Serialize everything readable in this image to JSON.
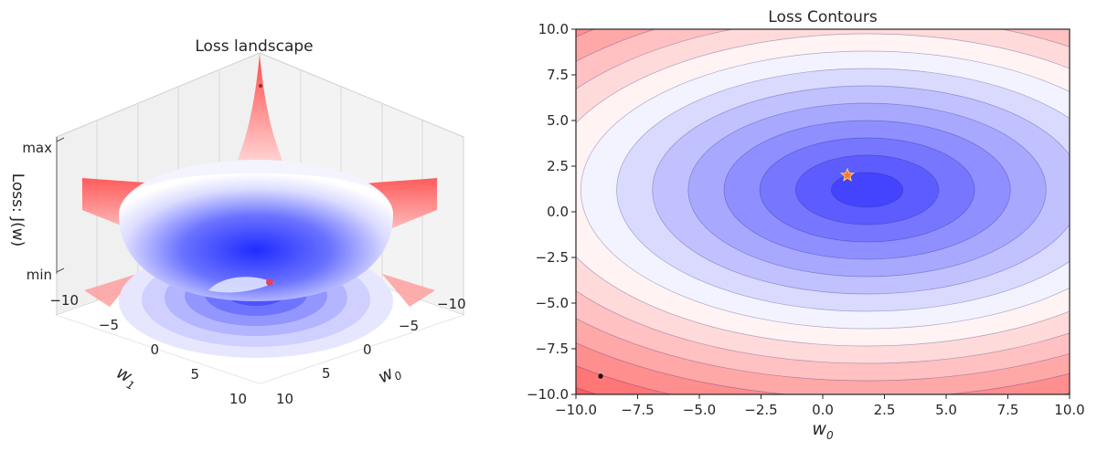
{
  "chart_data": [
    {
      "type": "surface",
      "title": "Loss landscape",
      "xlabel": "w",
      "xlabel_sub": "0",
      "ylabel": "w",
      "ylabel_sub": "1",
      "zlabel": "Loss: J(w)",
      "x_ticks": [
        "−10",
        "−5",
        "0",
        "5",
        "10"
      ],
      "y_ticks": [
        "−10",
        "−5",
        "0",
        "5",
        "10"
      ],
      "z_ticks": [
        "max",
        "min"
      ],
      "xlim": [
        -10,
        10
      ],
      "ylim": [
        -10,
        10
      ],
      "colormap": [
        "#4444ff",
        "#ffffff",
        "#ff4444"
      ],
      "minimum": {
        "w0": 1,
        "w1": 2
      }
    },
    {
      "type": "contour",
      "title": "Loss Contours",
      "xlabel": "w",
      "xlabel_sub": "0",
      "xlim": [
        -10,
        10
      ],
      "ylim": [
        -10,
        10
      ],
      "x_ticks": [
        "−10.0",
        "−7.5",
        "−5.0",
        "−2.5",
        "0.0",
        "2.5",
        "5.0",
        "7.5",
        "10.0"
      ],
      "y_ticks": [
        "10.0",
        "7.5",
        "5.0",
        "2.5",
        "0.0",
        "−2.5",
        "−5.0",
        "−7.5",
        "−10.0"
      ],
      "x_tick_values": [
        -10,
        -7.5,
        -5,
        -2.5,
        0,
        2.5,
        5,
        7.5,
        10
      ],
      "y_tick_values": [
        10,
        7.5,
        5,
        2.5,
        0,
        -2.5,
        -5,
        -7.5,
        -10
      ],
      "levels": 16,
      "colormap": [
        "#4444ff",
        "#ffffff",
        "#ff4444"
      ],
      "minimum": {
        "w0": 1,
        "w1": 2,
        "marker": "star",
        "color": "#ff7043",
        "edge": "#ffd54f"
      },
      "current_point": {
        "w0": -9,
        "w1": -9,
        "color": "#000000"
      },
      "ellipse_center": {
        "w0": 1.8,
        "w1": 1.2
      },
      "ellipse_semi_axes_step": {
        "w0": 1.45,
        "w1": 0.95
      }
    }
  ]
}
